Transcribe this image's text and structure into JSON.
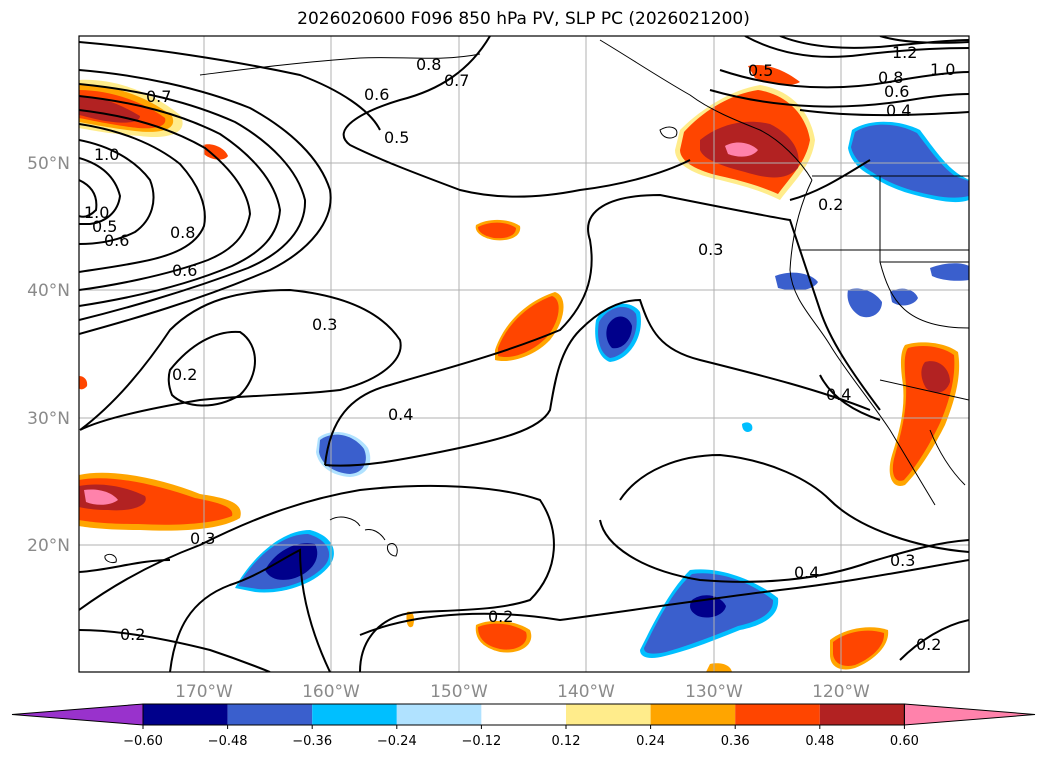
{
  "title": "2026020600 F096 850 hPa PV, SLP PC (2026021200)",
  "longitude_labels": [
    "170°W",
    "160°W",
    "150°W",
    "140°W",
    "130°W",
    "120°W"
  ],
  "latitude_labels": [
    "50°N",
    "40°N",
    "30°N",
    "20°N"
  ],
  "contour_labels": [
    {
      "id": "c0",
      "text": "1.2"
    },
    {
      "id": "c1",
      "text": "1.0"
    },
    {
      "id": "c2",
      "text": "0.8"
    },
    {
      "id": "c3",
      "text": "0.6"
    },
    {
      "id": "c4",
      "text": "0.4"
    },
    {
      "id": "c5",
      "text": "0.5"
    },
    {
      "id": "c6",
      "text": "0.7"
    },
    {
      "id": "c7",
      "text": "0.8"
    },
    {
      "id": "c8",
      "text": "0.6"
    },
    {
      "id": "c9",
      "text": "0.7"
    },
    {
      "id": "c10",
      "text": "1.0"
    },
    {
      "id": "c11",
      "text": "0.5"
    },
    {
      "id": "c12",
      "text": "0.8"
    },
    {
      "id": "c13",
      "text": "0.6"
    },
    {
      "id": "c14",
      "text": "0.2"
    },
    {
      "id": "c15",
      "text": "0.3"
    },
    {
      "id": "c16",
      "text": "0.3"
    },
    {
      "id": "c17",
      "text": "0.2"
    },
    {
      "id": "c18",
      "text": "0.4"
    },
    {
      "id": "c19",
      "text": "0.4"
    },
    {
      "id": "c20",
      "text": "0.3"
    },
    {
      "id": "c21",
      "text": "0.4"
    },
    {
      "id": "c22",
      "text": "0.3"
    },
    {
      "id": "c23",
      "text": "0.2"
    },
    {
      "id": "c24",
      "text": "0.2"
    },
    {
      "id": "c25",
      "text": "0.2"
    },
    {
      "id": "c26",
      "text": "0.6"
    },
    {
      "id": "c27",
      "text": "0.5"
    },
    {
      "id": "c28",
      "text": "1.0"
    }
  ],
  "colorbar": {
    "ticks": [
      "−0.60",
      "−0.48",
      "−0.36",
      "−0.24",
      "−0.12",
      "0.12",
      "0.24",
      "0.36",
      "0.48",
      "0.60"
    ],
    "colors": [
      "#9932cc",
      "#00008b",
      "#3a5fcd",
      "#00bfff",
      "#b0e2ff",
      "#ffffff",
      "#ffec8b",
      "#ffa500",
      "#ff4500",
      "#b22222",
      "#ff82ab"
    ]
  },
  "colors": {
    "land_outline": "#000000",
    "grid": "#b0b0b0",
    "contour": "#000000",
    "tick_label": "#8a8a8a"
  }
}
